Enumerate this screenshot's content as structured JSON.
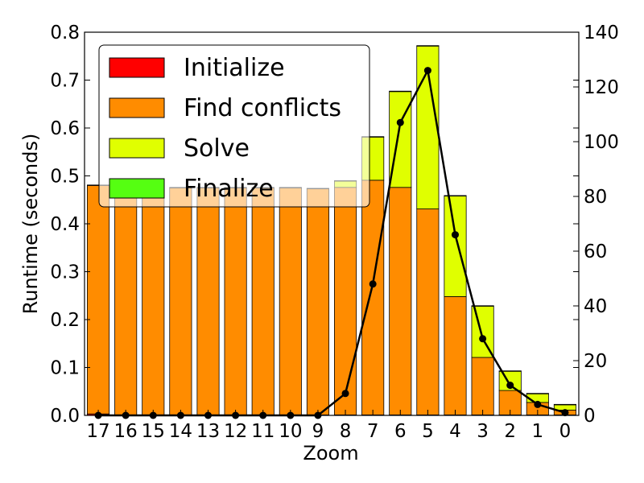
{
  "chart_data": {
    "type": "bar",
    "stacked": true,
    "xlabel": "Zoom",
    "ylabel": "Runtime (seconds)",
    "ylim": [
      0,
      0.8
    ],
    "y2lim": [
      0,
      140
    ],
    "yticks": [
      "0.0",
      "0.1",
      "0.2",
      "0.3",
      "0.4",
      "0.5",
      "0.6",
      "0.7",
      "0.8"
    ],
    "y2ticks": [
      "0",
      "20",
      "40",
      "60",
      "80",
      "100",
      "120",
      "140"
    ],
    "categories": [
      "17",
      "16",
      "15",
      "14",
      "13",
      "12",
      "11",
      "10",
      "9",
      "8",
      "7",
      "6",
      "5",
      "4",
      "3",
      "2",
      "1",
      "0"
    ],
    "series": [
      {
        "name": "Initialize",
        "color": "#ff0000",
        "values": [
          0.003,
          0.001,
          0.001,
          0.001,
          0.001,
          0.001,
          0.001,
          0.001,
          0.001,
          0.001,
          0.001,
          0.001,
          0.001,
          0.001,
          0.001,
          0.001,
          0.001,
          0.001
        ]
      },
      {
        "name": "Find conflicts",
        "color": "#ff8c00",
        "values": [
          0.477,
          0.474,
          0.474,
          0.474,
          0.474,
          0.474,
          0.474,
          0.474,
          0.472,
          0.475,
          0.49,
          0.475,
          0.43,
          0.247,
          0.12,
          0.051,
          0.026,
          0.01
        ]
      },
      {
        "name": "Solve",
        "color": "#e0ff00",
        "values": [
          0.0,
          0.0,
          0.0,
          0.0,
          0.0,
          0.0,
          0.0,
          0.0,
          0.0,
          0.013,
          0.09,
          0.2,
          0.34,
          0.21,
          0.107,
          0.04,
          0.018,
          0.011
        ]
      },
      {
        "name": "Finalize",
        "color": "#55ff11",
        "values": [
          0.001,
          0.001,
          0.001,
          0.001,
          0.001,
          0.001,
          0.001,
          0.001,
          0.001,
          0.001,
          0.001,
          0.001,
          0.001,
          0.001,
          0.001,
          0.001,
          0.001,
          0.001
        ]
      }
    ],
    "line": {
      "axis": "right",
      "color": "#000000",
      "values": [
        0,
        0,
        0,
        0,
        0,
        0,
        0,
        0,
        0,
        8,
        48,
        107,
        126,
        66,
        28,
        11,
        4,
        1
      ]
    },
    "legend_position": "top-left",
    "grid": false
  }
}
